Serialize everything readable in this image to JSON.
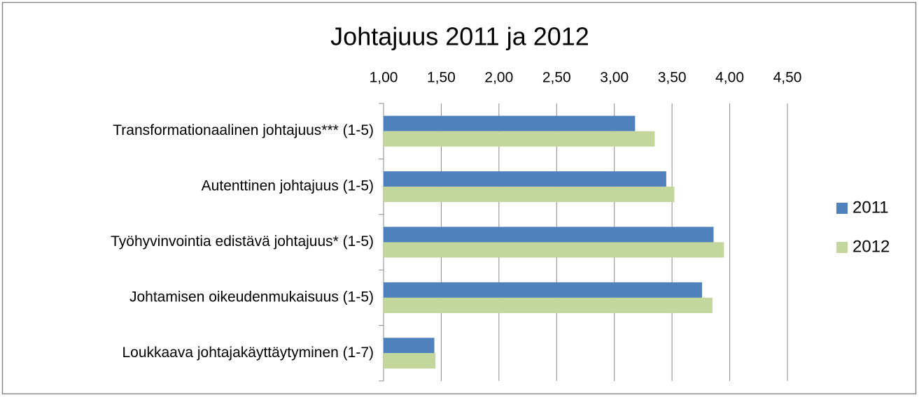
{
  "chart_data": {
    "type": "barh",
    "title": "Johtajuus 2011 ja 2012",
    "categories": [
      "Transformationaalinen johtajuus*** (1-5)",
      "Autenttinen johtajuus (1-5)",
      "Työhyvinvointia edistävä johtajuus* (1-5)",
      "Johtamisen oikeudenmukaisuus (1-5)",
      "Loukkaava johtajakäyttäytyminen (1-7)"
    ],
    "series": [
      {
        "name": "2011",
        "color": "#4f81bd",
        "values": [
          3.18,
          3.45,
          3.86,
          3.76,
          1.44
        ]
      },
      {
        "name": "2012",
        "color": "#c3d69b",
        "values": [
          3.35,
          3.52,
          3.95,
          3.85,
          1.45
        ]
      }
    ],
    "xlim": [
      1,
      4.5
    ],
    "xticks": [
      {
        "value": 1,
        "label": "1,00"
      },
      {
        "value": 1.5,
        "label": "1,50"
      },
      {
        "value": 2,
        "label": "2,00"
      },
      {
        "value": 2.5,
        "label": "2,50"
      },
      {
        "value": 3,
        "label": "3,00"
      },
      {
        "value": 3.5,
        "label": "3,50"
      },
      {
        "value": 4,
        "label": "4,00"
      },
      {
        "value": 4.5,
        "label": "4,50"
      }
    ],
    "grid": true,
    "legend": "right"
  }
}
